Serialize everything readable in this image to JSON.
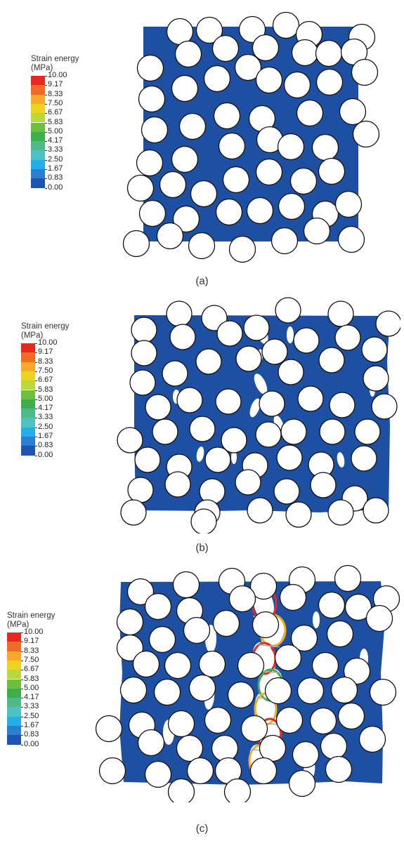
{
  "panels": [
    {
      "id": "a",
      "caption": "(a)"
    },
    {
      "id": "b",
      "caption": "(b)"
    },
    {
      "id": "c",
      "caption": "(c)"
    }
  ],
  "legend": {
    "title_line1": "Strain energy",
    "title_line2": "(MPa)",
    "ticks": [
      "10.00",
      "9.17",
      "8.33",
      "7.50",
      "6.67",
      "5.83",
      "5.00",
      "4.17",
      "3.33",
      "2.50",
      "1.67",
      "0.83",
      "0.00"
    ],
    "colors": [
      "#e8271f",
      "#f06a28",
      "#f7a72a",
      "#efd21c",
      "#b9d83a",
      "#6cbf3f",
      "#3fae4c",
      "#4fb98a",
      "#4fc1c2",
      "#22aee8",
      "#2b7fd1",
      "#1f55b0"
    ]
  },
  "colors": {
    "matrix": "#1d4fa3",
    "fiber_fill": "#ffffff",
    "fiber_stroke": "#111111",
    "damage_high": "#e8271f",
    "damage_mid": "#f0b020",
    "damage_low": "#3fae4c",
    "crack_strand": "#a8a8a8"
  }
}
